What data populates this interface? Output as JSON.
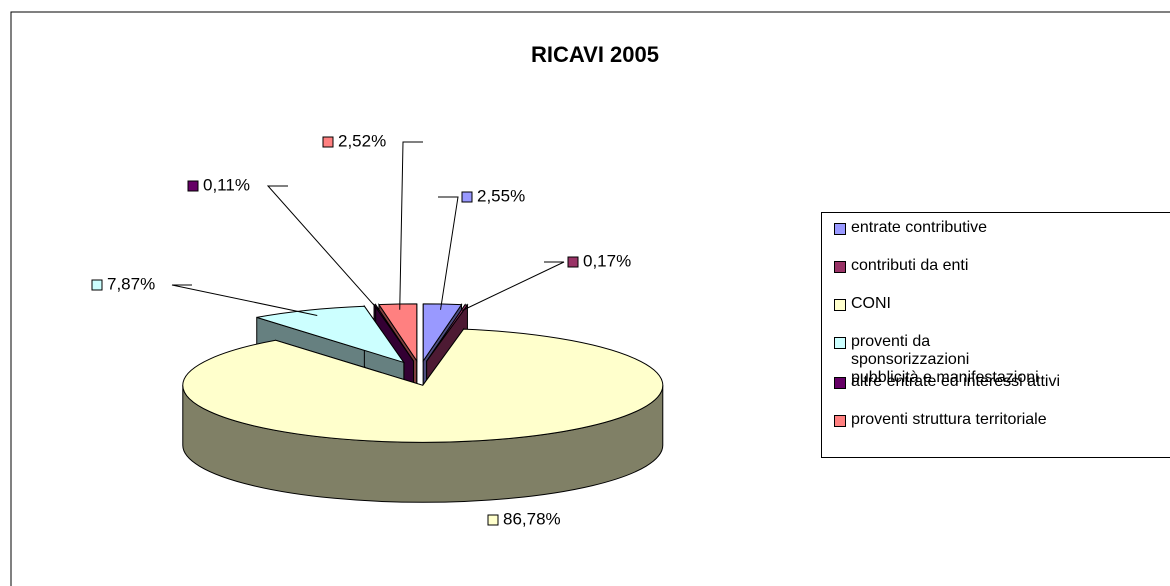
{
  "chart_data": {
    "type": "pie",
    "title": "RICAVI 2005",
    "categories": [
      "entrate contributive",
      "contributi da enti",
      "CONI",
      "proventi da sponsorizzazioni pubblicità e manifestazioni",
      "altre entrate ed interessi attivi",
      "proventi struttura territoriale"
    ],
    "values": [
      2.55,
      0.17,
      86.78,
      7.87,
      0.11,
      2.52
    ],
    "value_labels": [
      "2,55%",
      "0,17%",
      "86,78%",
      "7,87%",
      "0,11%",
      "2,52%"
    ],
    "colors": [
      "#9999ff",
      "#993366",
      "#ffffcc",
      "#ccffff",
      "#660066",
      "#ff8080"
    ],
    "legend": "right"
  }
}
